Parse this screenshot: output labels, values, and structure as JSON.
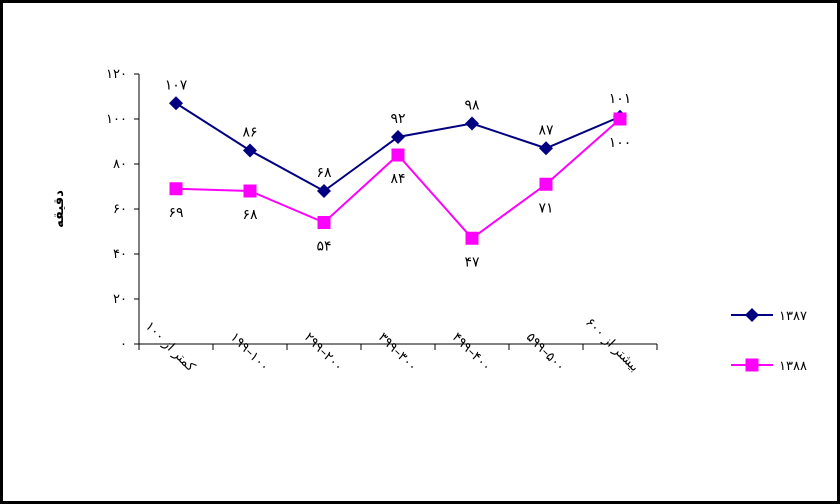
{
  "chart_data": {
    "type": "line",
    "title": "",
    "xlabel": "",
    "ylabel": "دقیقه",
    "ylim": [
      0,
      120
    ],
    "y_ticks": [
      "۰",
      "۲۰",
      "۴۰",
      "۶۰",
      "۸۰",
      "۱۰۰",
      "۱۲۰"
    ],
    "y_tick_values": [
      0,
      20,
      40,
      60,
      80,
      100,
      120
    ],
    "categories": [
      "کمتر از ۱۰۰",
      "۱۰۰–۱۹۹",
      "۲۰۰–۲۹۹",
      "۳۰۰–۳۹۹",
      "۴۰۰–۴۹۹",
      "۵۰۰–۵۹۹",
      "بیشتر از ۶۰۰"
    ],
    "series": [
      {
        "name": "۱۳۸۷",
        "color": "#000080",
        "marker": "diamond",
        "values": [
          107,
          86,
          68,
          92,
          98,
          87,
          101
        ],
        "labels": [
          "۱۰۷",
          "۸۶",
          "۶۸",
          "۹۲",
          "۹۸",
          "۸۷",
          "۱۰۱"
        ],
        "label_pos": [
          "above",
          "above",
          "above",
          "above",
          "above",
          "above",
          "above"
        ]
      },
      {
        "name": "۱۳۸۸",
        "color": "#ff00ff",
        "marker": "square",
        "values": [
          69,
          68,
          54,
          84,
          47,
          71,
          100
        ],
        "labels": [
          "۶۹",
          "۶۸",
          "۵۴",
          "۸۴",
          "۴۷",
          "۷۱",
          "۱۰۰"
        ],
        "label_pos": [
          "below",
          "below",
          "below",
          "below",
          "below",
          "below",
          "below"
        ]
      }
    ],
    "grid": false,
    "legend_position": "right"
  }
}
